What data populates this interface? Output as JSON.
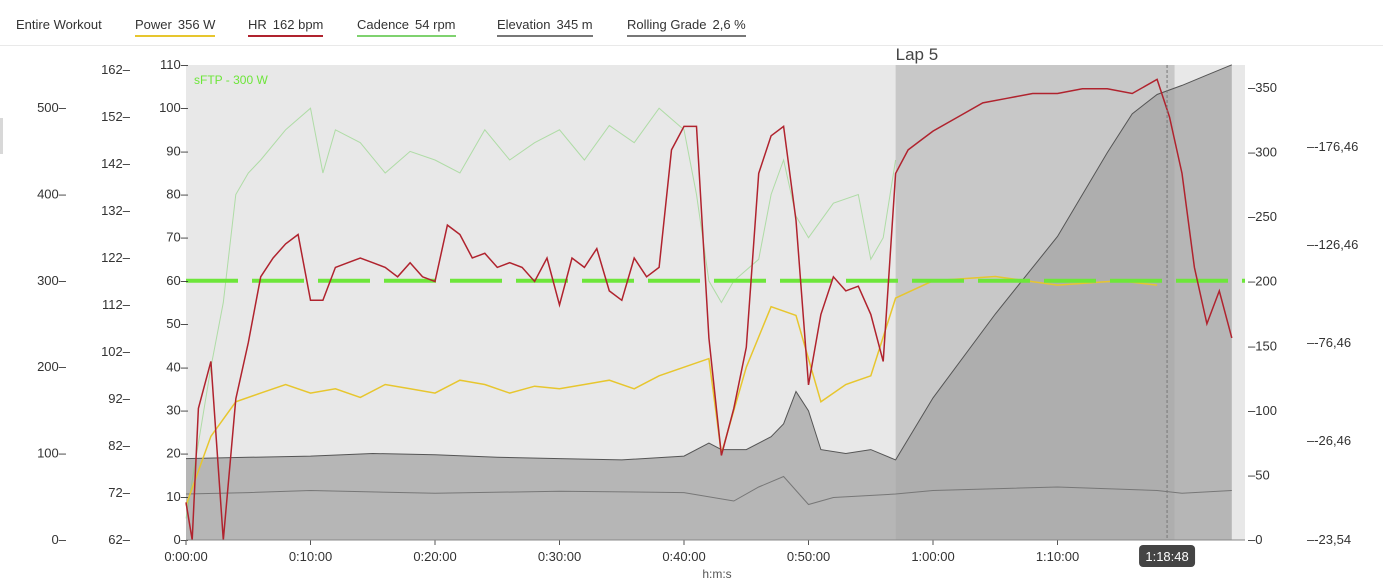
{
  "legend": {
    "entire_workout": "Entire Workout",
    "power_label": "Power",
    "power_value": "356 W",
    "hr_label": "HR",
    "hr_value": "162 bpm",
    "cadence_label": "Cadence",
    "cadence_value": "54 rpm",
    "elevation_label": "Elevation",
    "elevation_value": "345 m",
    "grade_label": "Rolling Grade",
    "grade_value": "2,6 %"
  },
  "colors": {
    "power": "#e7c62e",
    "hr": "#b0232e",
    "cadence": "#7fd26f",
    "elevation": "#555555",
    "grade": "#888888",
    "sftp": "#6de63a",
    "lap_band": "#c8c8c8",
    "lap_dark": "#999999"
  },
  "chart_data": {
    "type": "line",
    "x_label": "h:m:s",
    "x_ticks": [
      "0:00:00",
      "0:10:00",
      "0:20:00",
      "0:30:00",
      "0:40:00",
      "0:50:00",
      "1:00:00",
      "1:10:00"
    ],
    "x_range_minutes": [
      0,
      85
    ],
    "axes": {
      "power": {
        "ticks": [
          "0",
          "100",
          "200",
          "300",
          "400",
          "500"
        ],
        "range": [
          0,
          540
        ]
      },
      "hr": {
        "ticks": [
          "62",
          "72",
          "82",
          "92",
          "102",
          "112",
          "122",
          "132",
          "142",
          "152",
          "162"
        ],
        "range": [
          62,
          162
        ]
      },
      "cadence": {
        "ticks": [
          "0",
          "10",
          "20",
          "30",
          "40",
          "50",
          "60",
          "70",
          "80",
          "90",
          "100",
          "110"
        ],
        "range": [
          0,
          110
        ]
      },
      "elevation": {
        "ticks": [
          "0",
          "50",
          "100",
          "150",
          "200",
          "250",
          "300",
          "350"
        ],
        "range": [
          0,
          370
        ]
      },
      "grade": {
        "ticks": [
          "-23,54",
          "-26,46",
          "-76,46",
          "-126,46",
          "-176,46"
        ],
        "range": [
          -23.54,
          -210
        ]
      }
    },
    "sftp_label": "sFTP - 300 W",
    "sftp_value": 300,
    "lap": {
      "label": "Lap 5",
      "start_min": 57.0,
      "end_min": 79.0
    },
    "cursor": {
      "time": "1:18:48",
      "time_min": 78.8
    },
    "series": [
      {
        "name": "HR",
        "unit": "bpm",
        "points": [
          [
            0,
            70
          ],
          [
            0.5,
            62
          ],
          [
            1,
            90
          ],
          [
            2,
            100
          ],
          [
            3,
            62
          ],
          [
            4,
            92
          ],
          [
            5,
            104
          ],
          [
            6,
            118
          ],
          [
            7,
            122
          ],
          [
            8,
            125
          ],
          [
            9,
            127
          ],
          [
            10,
            113
          ],
          [
            11,
            113
          ],
          [
            12,
            120
          ],
          [
            13,
            121
          ],
          [
            14,
            122
          ],
          [
            15,
            121
          ],
          [
            16,
            120
          ],
          [
            17,
            118
          ],
          [
            18,
            121
          ],
          [
            19,
            118
          ],
          [
            20,
            117
          ],
          [
            21,
            129
          ],
          [
            22,
            127
          ],
          [
            23,
            122
          ],
          [
            24,
            123
          ],
          [
            25,
            120
          ],
          [
            26,
            121
          ],
          [
            27,
            120
          ],
          [
            28,
            117
          ],
          [
            29,
            122
          ],
          [
            30,
            112
          ],
          [
            31,
            122
          ],
          [
            32,
            120
          ],
          [
            33,
            124
          ],
          [
            34,
            115
          ],
          [
            35,
            113
          ],
          [
            36,
            122
          ],
          [
            37,
            118
          ],
          [
            38,
            120
          ],
          [
            39,
            145
          ],
          [
            40,
            150
          ],
          [
            41,
            150
          ],
          [
            42,
            105
          ],
          [
            43,
            80
          ],
          [
            44,
            90
          ],
          [
            45,
            103
          ],
          [
            46,
            140
          ],
          [
            47,
            148
          ],
          [
            48,
            150
          ],
          [
            49,
            130
          ],
          [
            50,
            95
          ],
          [
            51,
            110
          ],
          [
            52,
            118
          ],
          [
            53,
            115
          ],
          [
            54,
            116
          ],
          [
            55,
            110
          ],
          [
            56,
            100
          ],
          [
            57,
            140
          ],
          [
            58,
            145
          ],
          [
            59,
            147
          ],
          [
            60,
            149
          ],
          [
            62,
            152
          ],
          [
            64,
            155
          ],
          [
            66,
            156
          ],
          [
            68,
            157
          ],
          [
            70,
            157
          ],
          [
            72,
            158
          ],
          [
            74,
            158
          ],
          [
            76,
            157
          ],
          [
            78,
            160
          ],
          [
            79,
            152
          ],
          [
            80,
            140
          ],
          [
            81,
            120
          ],
          [
            82,
            108
          ],
          [
            83,
            115
          ],
          [
            84,
            105
          ]
        ]
      },
      {
        "name": "Cadence",
        "unit": "rpm",
        "points": [
          [
            0,
            5
          ],
          [
            2,
            40
          ],
          [
            3,
            55
          ],
          [
            4,
            80
          ],
          [
            5,
            85
          ],
          [
            6,
            88
          ],
          [
            8,
            95
          ],
          [
            10,
            100
          ],
          [
            11,
            85
          ],
          [
            12,
            95
          ],
          [
            14,
            92
          ],
          [
            16,
            85
          ],
          [
            18,
            90
          ],
          [
            20,
            88
          ],
          [
            22,
            85
          ],
          [
            24,
            95
          ],
          [
            26,
            88
          ],
          [
            28,
            92
          ],
          [
            30,
            95
          ],
          [
            32,
            88
          ],
          [
            34,
            96
          ],
          [
            36,
            92
          ],
          [
            38,
            100
          ],
          [
            40,
            95
          ],
          [
            41,
            80
          ],
          [
            42,
            60
          ],
          [
            43,
            55
          ],
          [
            44,
            60
          ],
          [
            46,
            65
          ],
          [
            47,
            80
          ],
          [
            48,
            88
          ],
          [
            49,
            75
          ],
          [
            50,
            70
          ],
          [
            52,
            78
          ],
          [
            54,
            80
          ],
          [
            55,
            65
          ],
          [
            56,
            70
          ],
          [
            57,
            88
          ]
        ]
      },
      {
        "name": "Power",
        "unit": "W",
        "approximate": true,
        "points": [
          [
            0,
            40
          ],
          [
            2,
            120
          ],
          [
            4,
            160
          ],
          [
            6,
            170
          ],
          [
            8,
            180
          ],
          [
            10,
            170
          ],
          [
            12,
            175
          ],
          [
            14,
            165
          ],
          [
            16,
            180
          ],
          [
            18,
            175
          ],
          [
            20,
            170
          ],
          [
            22,
            185
          ],
          [
            24,
            180
          ],
          [
            26,
            170
          ],
          [
            28,
            178
          ],
          [
            30,
            175
          ],
          [
            32,
            180
          ],
          [
            34,
            185
          ],
          [
            36,
            175
          ],
          [
            38,
            190
          ],
          [
            40,
            200
          ],
          [
            42,
            210
          ],
          [
            43,
            100
          ],
          [
            45,
            200
          ],
          [
            47,
            270
          ],
          [
            49,
            260
          ],
          [
            51,
            160
          ],
          [
            53,
            180
          ],
          [
            55,
            190
          ],
          [
            57,
            280
          ],
          [
            60,
            300
          ],
          [
            65,
            305
          ],
          [
            70,
            295
          ],
          [
            75,
            300
          ],
          [
            78,
            295
          ]
        ]
      },
      {
        "name": "Elevation",
        "unit": "m",
        "points": [
          [
            0,
            63
          ],
          [
            5,
            64
          ],
          [
            10,
            65
          ],
          [
            15,
            67
          ],
          [
            20,
            66
          ],
          [
            25,
            64
          ],
          [
            30,
            63
          ],
          [
            35,
            62
          ],
          [
            40,
            65
          ],
          [
            42,
            75
          ],
          [
            43,
            70
          ],
          [
            45,
            70
          ],
          [
            47,
            80
          ],
          [
            48,
            90
          ],
          [
            49,
            115
          ],
          [
            50,
            100
          ],
          [
            51,
            70
          ],
          [
            53,
            67
          ],
          [
            55,
            70
          ],
          [
            57,
            62
          ],
          [
            60,
            110
          ],
          [
            65,
            175
          ],
          [
            70,
            235
          ],
          [
            74,
            300
          ],
          [
            76,
            330
          ],
          [
            78,
            345
          ],
          [
            80,
            352
          ],
          [
            82,
            360
          ],
          [
            84,
            368
          ]
        ]
      },
      {
        "name": "Rolling Grade",
        "unit": "%",
        "points": [
          [
            0,
            -23.5
          ],
          [
            5,
            -23.7
          ],
          [
            10,
            -24.0
          ],
          [
            20,
            -23.6
          ],
          [
            30,
            -23.9
          ],
          [
            40,
            -23.7
          ],
          [
            44,
            -22.5
          ],
          [
            46,
            -24.5
          ],
          [
            48,
            -26.0
          ],
          [
            50,
            -22.0
          ],
          [
            52,
            -23.0
          ],
          [
            57,
            -23.5
          ],
          [
            60,
            -24.0
          ],
          [
            70,
            -24.5
          ],
          [
            78,
            -24.0
          ],
          [
            80,
            -23.6
          ],
          [
            84,
            -24.0
          ]
        ]
      }
    ]
  }
}
